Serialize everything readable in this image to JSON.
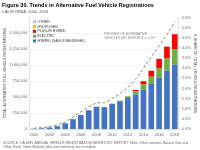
{
  "chart_data": {
    "type": "bar",
    "stacked": true,
    "title": "Figure 30. Trends in Alternative Fuel Vehicle Registrations",
    "subtitle": "CALIFORNIA, 2000–2018",
    "source": "SOURCE: CA DMV ANNUAL VEHICLE REGISTRATION INVENTORY REPORT; Note: Other includes Natural Gas and Other Fuels. Note: Biofuels (flex-fuel vehicles) are excluded.",
    "ylabel": "TOTAL ALTERNATIVE FUEL VEHICLE REGISTRATIONS",
    "y2label": "% SHARE OF TOTAL VEHICLE REGISTRATIONS",
    "categories": [
      "2000",
      null,
      "2002",
      null,
      "2004",
      null,
      "2006",
      null,
      "2008",
      null,
      "2010",
      null,
      "2012",
      null,
      "2014",
      null,
      "2016",
      null,
      "2018"
    ],
    "series": [
      {
        "name": "HYBRID (GASOLINE/DIESEL)",
        "color": "#4472c4",
        "values": [
          9000,
          14000,
          26000,
          47000,
          93000,
          157000,
          222000,
          297000,
          350000,
          345000,
          394000,
          436000,
          487000,
          541000,
          617000,
          709000,
          811000,
          916000,
          1010000
        ]
      },
      {
        "name": "ELECTRIC",
        "color": "#70ad47",
        "values": [
          500,
          600,
          700,
          800,
          900,
          1000,
          1200,
          1500,
          2000,
          2800,
          4500,
          9000,
          23000,
          48000,
          82000,
          112000,
          148000,
          192000,
          245000
        ]
      },
      {
        "name": "PLUG-IN HYBRID",
        "color": "#ff0000",
        "values": [
          0,
          0,
          0,
          0,
          0,
          0,
          0,
          0,
          0,
          0,
          800,
          1800,
          7000,
          23000,
          53000,
          92000,
          138000,
          182000,
          230000
        ]
      },
      {
        "name": "HYDROGEN",
        "color": "#ffc000",
        "values": [
          0,
          0,
          0,
          0,
          0,
          0,
          0,
          100,
          200,
          300,
          400,
          500,
          600,
          800,
          1000,
          1500,
          2500,
          4000,
          6000
        ]
      },
      {
        "name": "OTHER",
        "color": "#d9b3d9",
        "values": [
          400,
          500,
          600,
          700,
          800,
          900,
          1000,
          1100,
          1200,
          1300,
          1400,
          1500,
          1700,
          1900,
          2300,
          2800,
          3200,
          3700,
          4500
        ]
      },
      {
        "type": "line",
        "axis": "y2",
        "color": "#888888",
        "line_style": "dashed",
        "values": [
          0.05,
          0.08,
          0.12,
          0.2,
          0.35,
          0.6,
          0.85,
          1.1,
          1.3,
          1.3,
          1.5,
          1.75,
          2.05,
          2.45,
          3.0,
          3.55,
          4.1,
          4.65,
          5.3
        ]
      }
    ],
    "ylim": [
      0,
      1750000
    ],
    "yticks": [
      0,
      {
        "value": 250000,
        "label": "250,000"
      },
      {
        "value": 500000,
        "label": "500,000"
      },
      {
        "value": 750000,
        "label": "750,000"
      },
      {
        "value": 1000000,
        "label": "1,000,000"
      },
      {
        "value": 1250000,
        "label": "1,250,000"
      },
      {
        "value": 1500000,
        "label": "1,500,000"
      }
    ],
    "y2lim": [
      0.0,
      5.5
    ],
    "y2ticks": [
      {
        "value": 0.0,
        "label": "0.0%"
      },
      {
        "value": 0.5,
        "label": "0.5%"
      },
      {
        "value": 1.0,
        "label": "1.0%"
      },
      {
        "value": 1.5,
        "label": "1.5%"
      },
      {
        "value": 2.0,
        "label": "2.0%"
      },
      {
        "value": 2.5,
        "label": "2.5%"
      },
      {
        "value": 3.0,
        "label": "3.0%"
      },
      {
        "value": 3.5,
        "label": "3.5%"
      },
      {
        "value": 4.0,
        "label": "4.0%"
      },
      {
        "value": 4.5,
        "label": "4.5%"
      },
      {
        "value": 5.0,
        "label": "5.0%"
      },
      {
        "value": 5.5,
        "label": "5.5%"
      }
    ],
    "grid": true,
    "legend": "upper left",
    "annotations": [
      {
        "text": "PERCENT OF ALTERNATIVE\nVEHICLES (NO BIOFUELS) = 5.3%"
      }
    ]
  }
}
